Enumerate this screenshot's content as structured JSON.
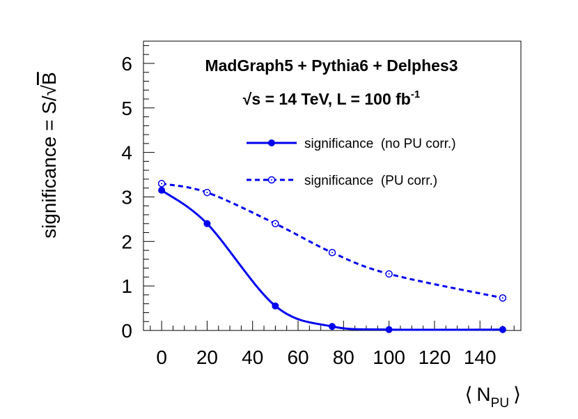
{
  "chart_data": {
    "type": "line",
    "title_line1": "MadGraph5 + Pythia6 + Delphes3",
    "title_line2": {
      "sqrt": "√",
      "s_label": "s = 14 TeV, L = 100 fb",
      "superscript": "-1"
    },
    "xlabel": {
      "open": "⟨",
      "symbol": "N",
      "subscript": "PU",
      "close": "⟩"
    },
    "ylabel": {
      "text": "significance = S/",
      "sqrt": "√",
      "radicand": "B"
    },
    "xlim": [
      -8,
      158
    ],
    "ylim": [
      0,
      6.5
    ],
    "x_ticks": [
      0,
      20,
      40,
      60,
      80,
      100,
      120,
      140
    ],
    "x_tick_labels": [
      "0",
      "20",
      "40",
      "60",
      "80",
      "100",
      "120",
      "140"
    ],
    "y_ticks": [
      0,
      1,
      2,
      3,
      4,
      5,
      6
    ],
    "y_tick_labels": [
      "0",
      "1",
      "2",
      "3",
      "4",
      "5",
      "6"
    ],
    "series": [
      {
        "name": "significance  (no PU corr.)",
        "style": "solid",
        "marker": "filled-circle",
        "color": "#0000ee",
        "x": [
          0,
          20,
          50,
          75,
          100,
          150
        ],
        "values": [
          3.15,
          2.4,
          0.55,
          0.09,
          0.02,
          0.02
        ]
      },
      {
        "name": "significance  (PU corr.)",
        "style": "dashed",
        "marker": "open-circle",
        "color": "#0000ee",
        "x": [
          0,
          20,
          50,
          75,
          100,
          150
        ],
        "values": [
          3.3,
          3.1,
          2.4,
          1.75,
          1.27,
          0.73
        ]
      }
    ]
  }
}
